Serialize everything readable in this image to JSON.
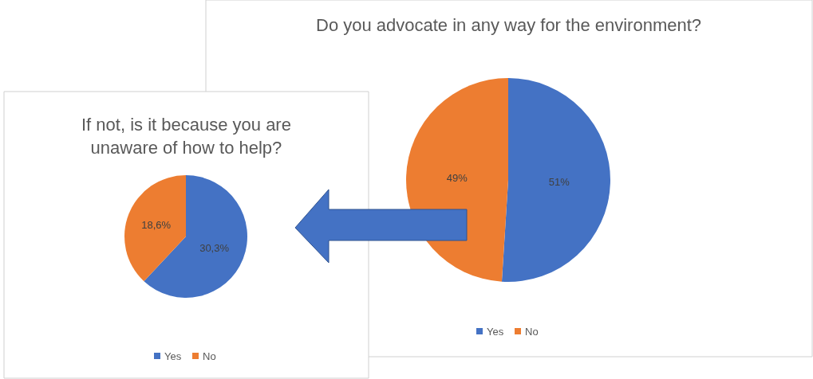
{
  "chart_data": [
    {
      "type": "pie",
      "title": "Do you advocate in any way for the environment?",
      "categories": [
        "Yes",
        "No"
      ],
      "values": [
        51,
        49
      ],
      "colors": [
        "#4472c4",
        "#ed7d31"
      ],
      "value_labels": [
        "51%",
        "49%"
      ],
      "legend": "bottom"
    },
    {
      "type": "pie",
      "title": "If not, is it because you are unaware of how to help?",
      "categories": [
        "Yes",
        "No"
      ],
      "values": [
        30.3,
        18.6
      ],
      "colors": [
        "#4472c4",
        "#ed7d31"
      ],
      "value_labels": [
        "30,3%",
        "18,6%"
      ],
      "legend": "bottom"
    }
  ]
}
